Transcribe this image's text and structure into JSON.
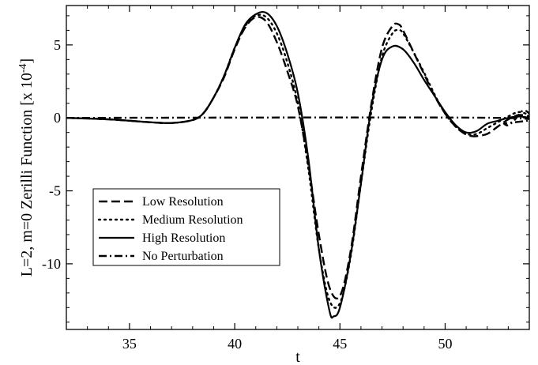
{
  "chart_data": {
    "type": "line",
    "title": "",
    "xlabel": "t",
    "ylabel": "L=2, m=0 Zerilli Function [x 10",
    "ylabel_exponent": "-4",
    "ylabel_close": "]",
    "xlim": [
      32,
      54
    ],
    "ylim": [
      -14.5,
      7.7
    ],
    "xticks": [
      35,
      40,
      45,
      50
    ],
    "xtick_labels": [
      "35",
      "40",
      "45",
      "50"
    ],
    "yticks": [
      5,
      0,
      -5,
      -10
    ],
    "ytick_labels": [
      "5",
      "0",
      "-5",
      "-10"
    ],
    "grid": false,
    "legend_position": "lower-left",
    "series": [
      {
        "name": "Low Resolution",
        "style": "dashed",
        "x": [
          32,
          34,
          36,
          37,
          38,
          38.5,
          39,
          39.5,
          40,
          40.5,
          41,
          41.5,
          42,
          42.5,
          43,
          43.5,
          44,
          44.5,
          45,
          45.5,
          46,
          46.5,
          47,
          47.5,
          47.8,
          48,
          48.5,
          49,
          49.5,
          50,
          50.5,
          51,
          51.3,
          51.5,
          52,
          52.5,
          53,
          53.5,
          54
        ],
        "y": [
          0,
          -0.1,
          -0.3,
          -0.35,
          -0.15,
          0.3,
          1.4,
          2.8,
          4.7,
          6.2,
          6.9,
          6.6,
          5.2,
          3.2,
          0.8,
          -3.2,
          -8.0,
          -11.6,
          -12.2,
          -9.2,
          -4.0,
          1.0,
          4.8,
          6.3,
          6.4,
          6.0,
          4.5,
          3.0,
          1.5,
          0.3,
          -0.6,
          -1.15,
          -1.25,
          -1.25,
          -1.1,
          -0.6,
          -0.1,
          0.2,
          0.1
        ]
      },
      {
        "name": "Medium Resolution",
        "style": "dotted",
        "x": [
          32,
          34,
          36,
          37,
          38,
          38.5,
          39,
          39.5,
          40,
          40.5,
          41,
          41.5,
          42,
          42.5,
          43,
          43.5,
          44,
          44.5,
          45,
          45.5,
          46,
          46.5,
          47,
          47.5,
          47.8,
          48,
          48.5,
          49,
          49.5,
          50,
          50.5,
          51,
          51.5,
          52,
          52.5,
          53,
          53.5,
          54
        ],
        "y": [
          0,
          -0.1,
          -0.3,
          -0.35,
          -0.15,
          0.3,
          1.4,
          2.9,
          4.8,
          6.3,
          7.0,
          6.9,
          5.8,
          3.8,
          1.0,
          -3.5,
          -9.0,
          -12.5,
          -12.7,
          -9.6,
          -4.5,
          0.5,
          4.2,
          5.8,
          6.0,
          5.8,
          4.5,
          3.1,
          1.6,
          0.3,
          -0.6,
          -1.1,
          -1.1,
          -0.7,
          -0.3,
          0.1,
          0.4,
          0.2
        ]
      },
      {
        "name": "High Resolution",
        "style": "solid",
        "x": [
          32,
          34,
          36,
          37,
          38,
          38.5,
          39,
          39.5,
          40,
          40.5,
          41,
          41.5,
          42,
          42.5,
          43,
          43.5,
          44,
          44.5,
          44.7,
          45,
          45.5,
          46,
          46.5,
          47,
          47.5,
          48,
          48.5,
          49,
          49.5,
          50,
          50.5,
          51,
          51.5,
          52,
          52.5,
          53,
          53.5,
          54
        ],
        "y": [
          0,
          -0.1,
          -0.3,
          -0.35,
          -0.15,
          0.3,
          1.4,
          2.9,
          4.8,
          6.4,
          7.1,
          7.2,
          6.3,
          4.4,
          1.7,
          -2.8,
          -9.0,
          -13.2,
          -13.6,
          -13.0,
          -9.5,
          -4.5,
          0.8,
          4.0,
          4.9,
          4.7,
          3.8,
          2.6,
          1.5,
          0.4,
          -0.5,
          -1.0,
          -0.9,
          -0.4,
          -0.2,
          0.0,
          0.1,
          0.0
        ]
      },
      {
        "name": "No Perturbation",
        "style": "dashdot",
        "x": [
          32,
          52.5,
          52.8,
          53,
          53.3,
          53.6,
          53.8,
          54
        ],
        "y": [
          0,
          0,
          -0.4,
          -0.5,
          -0.15,
          0.4,
          0.5,
          0.3
        ]
      }
    ]
  }
}
